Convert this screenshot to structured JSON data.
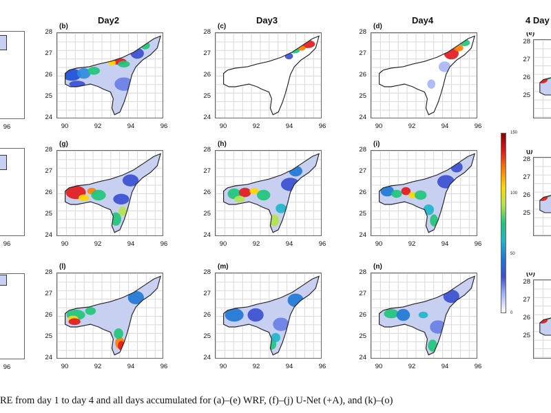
{
  "columns": {
    "day2": "Day2",
    "day3": "Day3",
    "day4": "Day4",
    "all": "4 Day"
  },
  "rows": [
    {
      "panels": [
        {
          "label": "(b)",
          "scheme": "wrf2"
        },
        {
          "label": "(c)",
          "scheme": "wrf3"
        },
        {
          "label": "(d)",
          "scheme": "wrf4"
        },
        {
          "label": "(e)",
          "scheme": "partial"
        }
      ]
    },
    {
      "panels": [
        {
          "label": "(g)",
          "scheme": "unet2"
        },
        {
          "label": "(h)",
          "scheme": "unet3"
        },
        {
          "label": "(i)",
          "scheme": "unet4"
        },
        {
          "label": "(j)",
          "scheme": "partial"
        }
      ]
    },
    {
      "panels": [
        {
          "label": "(l)",
          "scheme": "k2"
        },
        {
          "label": "(m)",
          "scheme": "k3"
        },
        {
          "label": "(n)",
          "scheme": "k4"
        },
        {
          "label": "(o)",
          "scheme": "partial"
        }
      ]
    }
  ],
  "left_partial_xtick": "96",
  "yticks": [
    "28",
    "27",
    "26",
    "25",
    "24"
  ],
  "xticks": [
    "90",
    "92",
    "94",
    "96"
  ],
  "colorbar": {
    "ticks": [
      "150",
      "100",
      "50",
      "0"
    ],
    "colors": [
      "#8b0000",
      "#e31a1c",
      "#ff7f00",
      "#ffd700",
      "#b3e34d",
      "#21c47a",
      "#1fb5c8",
      "#1f77d6",
      "#3b4fd1",
      "#a8b6f5",
      "#ffffff"
    ]
  },
  "caption": "RE from day 1 to day 4 and all days accumulated for (a)–(e) WRF, (f)–(j) U-Net (+A), and (k)–(o)"
}
